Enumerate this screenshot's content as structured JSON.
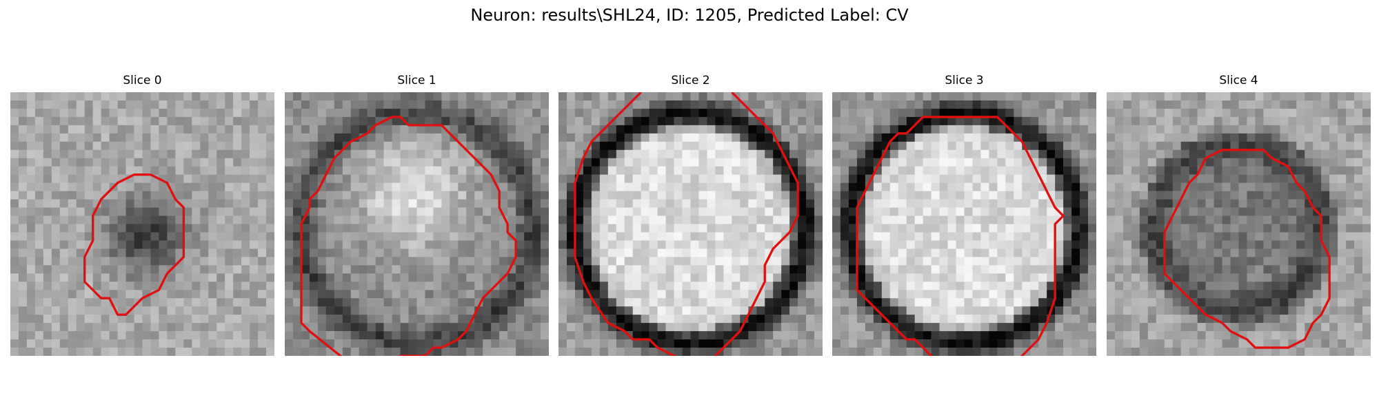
{
  "title": "Neuron: results\\SHL24, ID: 1205, Predicted Label: CV",
  "contour_color": "#e01010",
  "grid_size": 32,
  "panels": [
    {
      "label": "Slice 0",
      "style": "dark-blob",
      "contour": [
        [
          17,
          10
        ],
        [
          19,
          11
        ],
        [
          20,
          13
        ],
        [
          21,
          14
        ],
        [
          21,
          20
        ],
        [
          19,
          22
        ],
        [
          18,
          24
        ],
        [
          16,
          25
        ],
        [
          15,
          26
        ],
        [
          14,
          27
        ],
        [
          13,
          27
        ],
        [
          12,
          25
        ],
        [
          11,
          25
        ],
        [
          9,
          23
        ],
        [
          9,
          22
        ],
        [
          9,
          20
        ],
        [
          10,
          18
        ],
        [
          10,
          15
        ],
        [
          11,
          13
        ],
        [
          13,
          11
        ],
        [
          15,
          10
        ]
      ]
    },
    {
      "label": "Slice 1",
      "style": "bright-blob",
      "contour": [
        [
          13,
          3
        ],
        [
          14,
          3
        ],
        [
          15,
          4
        ],
        [
          19,
          4
        ],
        [
          21,
          6
        ],
        [
          23,
          8
        ],
        [
          25,
          10
        ],
        [
          26,
          12
        ],
        [
          26,
          14
        ],
        [
          27,
          16
        ],
        [
          27,
          17
        ],
        [
          28,
          18
        ],
        [
          28,
          20
        ],
        [
          27,
          22
        ],
        [
          26,
          23
        ],
        [
          24,
          25
        ],
        [
          23,
          27
        ],
        [
          22,
          29
        ],
        [
          21,
          30
        ],
        [
          19,
          31
        ],
        [
          18,
          31
        ],
        [
          17,
          32
        ],
        [
          14,
          32
        ],
        [
          13,
          33
        ],
        [
          8,
          33
        ],
        [
          3,
          29
        ],
        [
          2,
          28
        ],
        [
          2,
          16
        ],
        [
          3,
          14
        ],
        [
          3,
          13
        ],
        [
          4,
          12
        ],
        [
          5,
          10
        ],
        [
          6,
          8
        ],
        [
          8,
          6
        ],
        [
          10,
          5
        ],
        [
          11,
          4
        ]
      ]
    },
    {
      "label": "Slice 2",
      "style": "bright-ring",
      "open_paths": [
        [
          [
            10,
            0
          ],
          [
            6,
            4
          ],
          [
            5,
            5
          ],
          [
            4,
            6
          ],
          [
            3,
            8
          ],
          [
            2,
            11
          ],
          [
            2,
            20
          ],
          [
            3,
            23
          ],
          [
            4,
            25
          ],
          [
            6,
            28
          ],
          [
            8,
            29
          ],
          [
            9,
            30
          ],
          [
            11,
            30
          ],
          [
            12,
            31
          ],
          [
            14,
            32
          ],
          [
            16,
            33
          ]
        ],
        [
          [
            21,
            0
          ],
          [
            24,
            3
          ],
          [
            26,
            5
          ],
          [
            27,
            7
          ],
          [
            28,
            9
          ],
          [
            29,
            11
          ],
          [
            29,
            15
          ],
          [
            28,
            17
          ],
          [
            27,
            18
          ],
          [
            26,
            19
          ],
          [
            25,
            21
          ],
          [
            25,
            23
          ],
          [
            24,
            25
          ],
          [
            23,
            27
          ],
          [
            22,
            29
          ],
          [
            20,
            31
          ],
          [
            19,
            32
          ],
          [
            18,
            33
          ]
        ]
      ]
    },
    {
      "label": "Slice 3",
      "style": "bright-ring",
      "open_paths": [
        [
          [
            13,
            33
          ],
          [
            11,
            31
          ],
          [
            10,
            30
          ],
          [
            9,
            30
          ],
          [
            8,
            29
          ],
          [
            6,
            27
          ],
          [
            4,
            25
          ],
          [
            3,
            24
          ],
          [
            3,
            22
          ],
          [
            3,
            20
          ],
          [
            3,
            18
          ],
          [
            3,
            14
          ],
          [
            4,
            12
          ],
          [
            5,
            10
          ],
          [
            6,
            8
          ],
          [
            7,
            6
          ],
          [
            8,
            5
          ],
          [
            9,
            5
          ],
          [
            10,
            4
          ],
          [
            11,
            3
          ],
          [
            12,
            3
          ],
          [
            13,
            3
          ],
          [
            16,
            3
          ],
          [
            20,
            3
          ],
          [
            21,
            4
          ],
          [
            22,
            5
          ],
          [
            23,
            6
          ],
          [
            24,
            8
          ],
          [
            25,
            10
          ],
          [
            26,
            12
          ],
          [
            27,
            14
          ],
          [
            28,
            15
          ],
          [
            27,
            16
          ],
          [
            27,
            21
          ],
          [
            27,
            25
          ],
          [
            26,
            28
          ],
          [
            25,
            30
          ],
          [
            24,
            31
          ],
          [
            23,
            32
          ],
          [
            22,
            33
          ]
        ]
      ]
    },
    {
      "label": "Slice 4",
      "style": "dark-ring",
      "contour": [
        [
          14,
          7
        ],
        [
          16,
          7
        ],
        [
          19,
          7
        ],
        [
          20,
          8
        ],
        [
          22,
          9
        ],
        [
          23,
          11
        ],
        [
          24,
          12
        ],
        [
          25,
          14
        ],
        [
          26,
          15
        ],
        [
          26,
          18
        ],
        [
          27,
          20
        ],
        [
          27,
          25
        ],
        [
          26,
          27
        ],
        [
          25,
          28
        ],
        [
          24,
          30
        ],
        [
          22,
          31
        ],
        [
          20,
          31
        ],
        [
          18,
          31
        ],
        [
          17,
          30
        ],
        [
          15,
          29
        ],
        [
          14,
          28
        ],
        [
          12,
          27
        ],
        [
          11,
          26
        ],
        [
          10,
          25
        ],
        [
          8,
          23
        ],
        [
          7,
          22
        ],
        [
          7,
          20
        ],
        [
          7,
          17
        ],
        [
          8,
          15
        ],
        [
          9,
          13
        ],
        [
          10,
          11
        ],
        [
          11,
          10
        ],
        [
          12,
          8
        ]
      ]
    }
  ]
}
